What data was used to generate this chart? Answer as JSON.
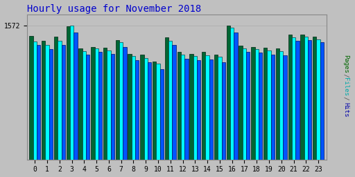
{
  "title": "Hourly usage for November 2018",
  "title_color": "#0000CC",
  "title_fontsize": 10,
  "xlabel_values": [
    0,
    1,
    2,
    3,
    4,
    5,
    6,
    7,
    8,
    9,
    10,
    11,
    12,
    13,
    14,
    15,
    16,
    17,
    18,
    19,
    20,
    21,
    22,
    23
  ],
  "ytick_label": "1572",
  "background_color": "#C0C0C0",
  "plot_bg_color": "#C0C0C0",
  "bar_width": 0.3,
  "hits": [
    1450,
    1390,
    1440,
    1560,
    1300,
    1320,
    1310,
    1400,
    1240,
    1230,
    1150,
    1430,
    1260,
    1240,
    1260,
    1230,
    1572,
    1330,
    1320,
    1310,
    1300,
    1460,
    1460,
    1440
  ],
  "files": [
    1380,
    1340,
    1390,
    1572,
    1270,
    1300,
    1280,
    1370,
    1210,
    1190,
    1120,
    1390,
    1230,
    1210,
    1220,
    1200,
    1540,
    1300,
    1290,
    1280,
    1270,
    1430,
    1440,
    1410
  ],
  "pages": [
    1340,
    1290,
    1340,
    1490,
    1230,
    1260,
    1240,
    1320,
    1160,
    1140,
    1060,
    1340,
    1180,
    1160,
    1170,
    1140,
    1490,
    1260,
    1250,
    1230,
    1220,
    1390,
    1400,
    1370
  ],
  "cyan_color": "#00FFFF",
  "green_color": "#006633",
  "blue_color": "#0055FF",
  "ylim_max": 1700,
  "ylim_min": 0,
  "grid_color": "#AAAAAA",
  "right_label_parts": [
    [
      "Pages",
      "#006600"
    ],
    [
      " / ",
      "#555555"
    ],
    [
      "Files",
      "#00AAAA"
    ],
    [
      " / ",
      "#555555"
    ],
    [
      "Hits",
      "#0000AA"
    ]
  ]
}
